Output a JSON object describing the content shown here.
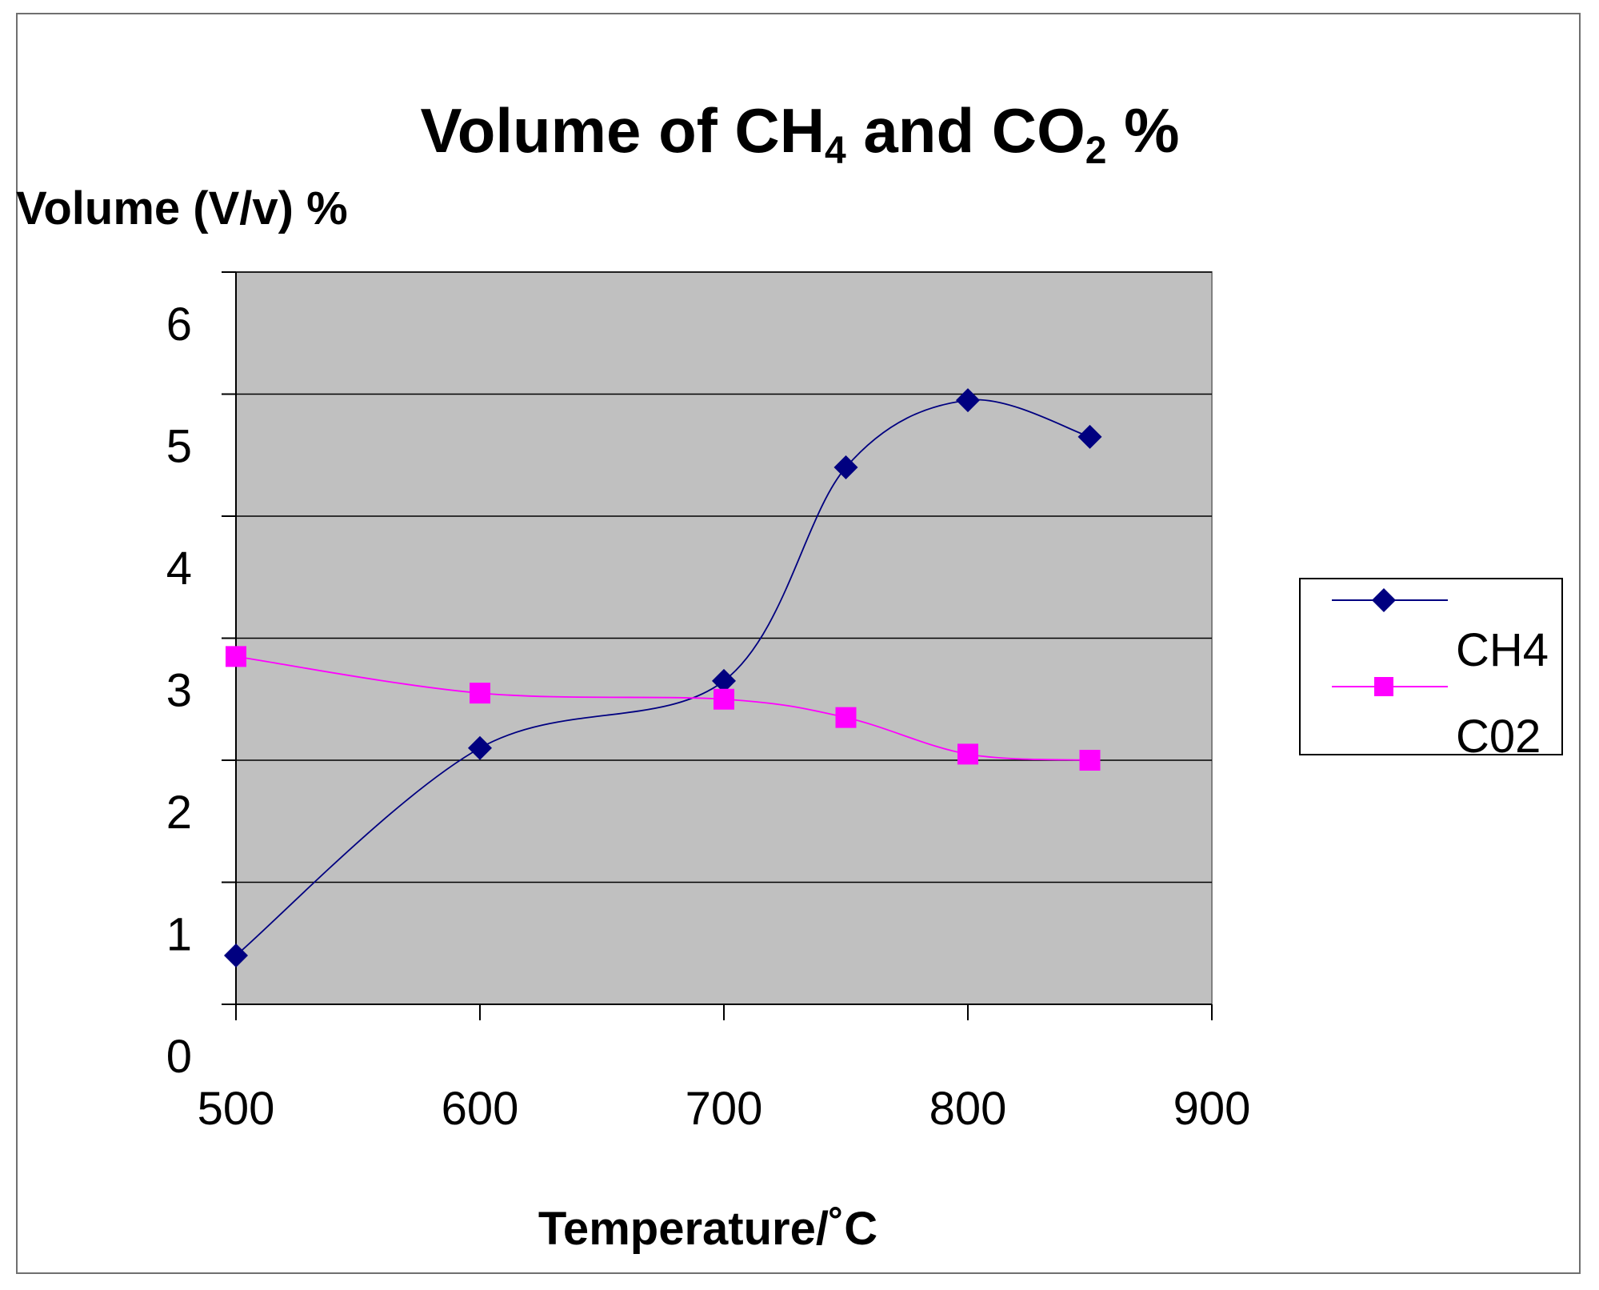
{
  "chart_data": {
    "type": "line",
    "title": "Volume of CH4 and CO2 %",
    "title_parts": {
      "part1": "Volume of CH",
      "sub1": "4",
      "part2": " and CO",
      "sub2": "2",
      "part3": " %"
    },
    "ylabel": "Volume (V/v) %",
    "xlabel": "Temperature/˚C",
    "xlim": [
      500,
      900
    ],
    "ylim": [
      0,
      6
    ],
    "x_ticks": [
      "500",
      "600",
      "700",
      "800",
      "900"
    ],
    "y_ticks": [
      "0",
      "1",
      "2",
      "3",
      "4",
      "5",
      "6"
    ],
    "grid": true,
    "legend_position": "right",
    "series": [
      {
        "name": "CH4",
        "color": "#000080",
        "marker": "diamond",
        "x": [
          500,
          600,
          700,
          750,
          800,
          850
        ],
        "y": [
          0.4,
          2.1,
          2.65,
          4.4,
          4.95,
          4.65
        ]
      },
      {
        "name": "C02",
        "color": "#ff00ff",
        "marker": "square",
        "x": [
          500,
          600,
          700,
          750,
          800,
          850
        ],
        "y": [
          2.85,
          2.55,
          2.5,
          2.35,
          2.05,
          2.0
        ]
      }
    ],
    "plot_background": "#c0c0c0"
  }
}
